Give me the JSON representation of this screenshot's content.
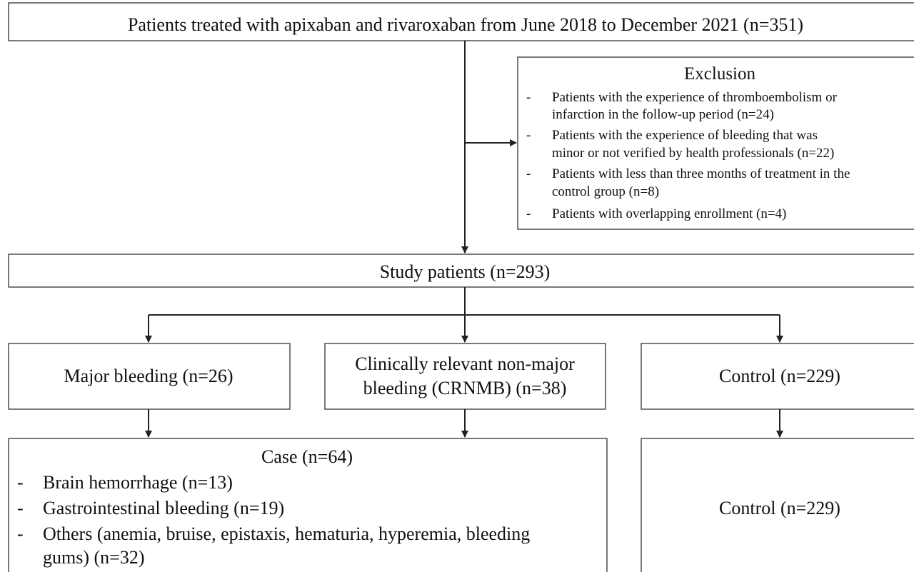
{
  "top": {
    "label": "Patients treated with apixaban and rivaroxaban from June 2018 to December 2021 (n=351)"
  },
  "exclusion": {
    "title": "Exclusion",
    "items": [
      {
        "lines": [
          "Patients with the experience of thromboembolism or",
          "infarction in the follow-up period (n=24)"
        ]
      },
      {
        "lines": [
          "Patients with the experience of bleeding that was",
          "minor or not verified by health professionals (n=22)"
        ]
      },
      {
        "lines": [
          "Patients with less than three months of treatment in the",
          "control group (n=8)"
        ]
      },
      {
        "lines": [
          "Patients with overlapping enrollment  (n=4)"
        ]
      }
    ]
  },
  "study": {
    "label": "Study patients (n=293)"
  },
  "groups": [
    {
      "lines": [
        "Major bleeding (n=26)"
      ]
    },
    {
      "lines": [
        "Clinically  relevant non-major",
        "bleeding (CRNMB) (n=38)"
      ]
    },
    {
      "lines": [
        "Control (n=229)"
      ]
    }
  ],
  "case": {
    "title": "Case (n=64)",
    "items": [
      {
        "lines": [
          "Brain hemorrhage (n=13)"
        ]
      },
      {
        "lines": [
          "Gastrointestinal bleeding (n=19)"
        ]
      },
      {
        "lines": [
          "Others (anemia, bruise, epistaxis, hematuria, hyperemia, bleeding",
          "gums) (n=32)"
        ]
      }
    ]
  },
  "control": {
    "label": "Control (n=229)"
  },
  "bullet": "-"
}
